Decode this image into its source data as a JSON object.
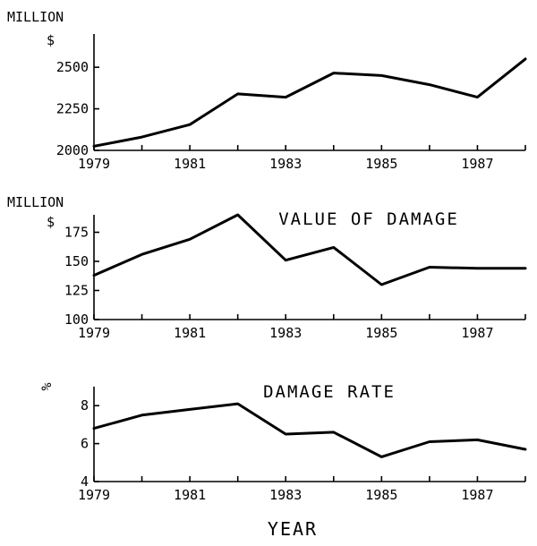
{
  "x_axis_title": "YEAR",
  "chart_data": [
    {
      "type": "line",
      "title": "",
      "unit_label_top": "MILLION",
      "unit_label_bottom": "$",
      "x": [
        1979,
        1980,
        1981,
        1982,
        1983,
        1984,
        1985,
        1986,
        1987,
        1988
      ],
      "x_tick_labels": [
        "1979",
        "1981",
        "1983",
        "1985",
        "1987"
      ],
      "y_tick_labels": [
        "2000",
        "2250",
        "2500"
      ],
      "ylim": [
        2000,
        2700
      ],
      "series": [
        {
          "values": [
            2025,
            2080,
            2155,
            2340,
            2320,
            2465,
            2450,
            2395,
            2320,
            2550
          ]
        }
      ]
    },
    {
      "type": "line",
      "title": "VALUE OF DAMAGE",
      "unit_label_top": "MILLION",
      "unit_label_bottom": "$",
      "x": [
        1979,
        1980,
        1981,
        1982,
        1983,
        1984,
        1985,
        1986,
        1987,
        1988
      ],
      "x_tick_labels": [
        "1979",
        "1981",
        "1983",
        "1985",
        "1987"
      ],
      "y_tick_labels": [
        "100",
        "125",
        "150",
        "175"
      ],
      "ylim": [
        100,
        190
      ],
      "series": [
        {
          "values": [
            138,
            156,
            169,
            190,
            151,
            162,
            130,
            145,
            144,
            144
          ]
        }
      ]
    },
    {
      "type": "line",
      "title": "DAMAGE RATE",
      "unit_label_top": "%",
      "unit_label_bottom": "",
      "x": [
        1979,
        1980,
        1981,
        1982,
        1983,
        1984,
        1985,
        1986,
        1987,
        1988
      ],
      "x_tick_labels": [
        "1979",
        "1981",
        "1983",
        "1985",
        "1987"
      ],
      "y_tick_labels": [
        "4",
        "6",
        "8"
      ],
      "ylim": [
        4,
        9
      ],
      "series": [
        {
          "values": [
            6.8,
            7.5,
            7.8,
            8.1,
            6.5,
            6.6,
            5.3,
            6.1,
            6.2,
            5.7
          ]
        }
      ]
    }
  ]
}
